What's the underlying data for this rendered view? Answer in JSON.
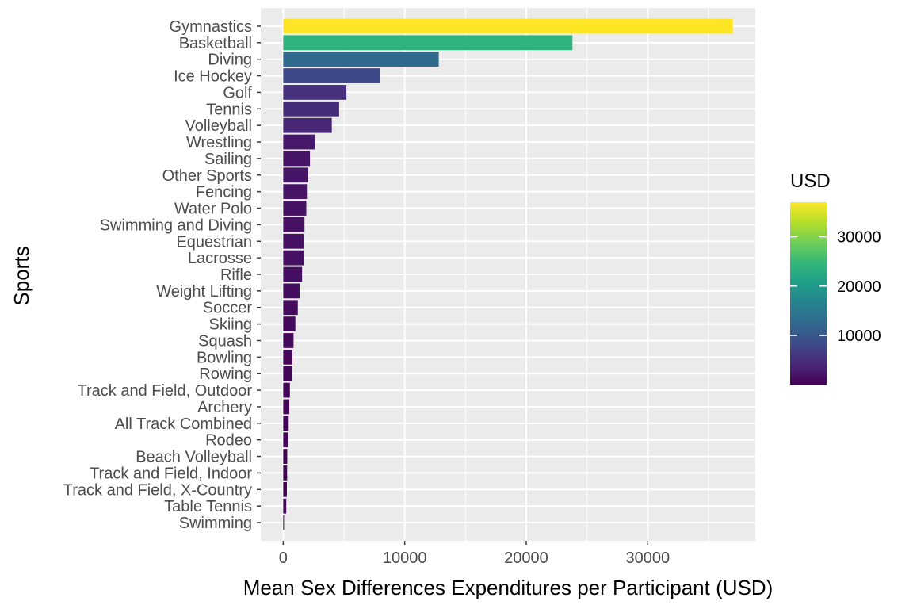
{
  "chart_data": {
    "type": "bar",
    "orientation": "horizontal",
    "xlabel": "Mean Sex Differences Expenditures per Participant (USD)",
    "ylabel": "Sports",
    "xlim": [
      -1850,
      38850
    ],
    "xticks": [
      0,
      10000,
      20000,
      30000
    ],
    "xtick_labels": [
      "0",
      "10000",
      "20000",
      "30000"
    ],
    "grid": true,
    "background": "#ebebeb",
    "legend": {
      "title": "USD",
      "position": "right",
      "type": "colorbar",
      "min": 50,
      "max": 37000,
      "ticks": [
        10000,
        20000,
        30000
      ],
      "tick_labels": [
        "10000",
        "20000",
        "30000"
      ],
      "colormap": "viridis",
      "colors": [
        "#440154",
        "#482878",
        "#3e4a89",
        "#31688e",
        "#26828e",
        "#1f9e89",
        "#35b779",
        "#6ece58",
        "#b5de2b",
        "#fde725"
      ]
    },
    "categories": [
      "Gymnastics",
      "Basketball",
      "Diving",
      "Ice Hockey",
      "Golf",
      "Tennis",
      "Volleyball",
      "Wrestling",
      "Sailing",
      "Other Sports",
      "Fencing",
      "Water Polo",
      "Swimming and Diving",
      "Equestrian",
      "Lacrosse",
      "Rifle",
      "Weight Lifting",
      "Soccer",
      "Skiing",
      "Squash",
      "Bowling",
      "Rowing",
      "Track and Field, Outdoor",
      "Archery",
      "All Track Combined",
      "Rodeo",
      "Beach Volleyball",
      "Track and Field, Indoor",
      "Track and Field, X-Country",
      "Table Tennis",
      "Swimming"
    ],
    "values": [
      37000,
      23800,
      12800,
      8000,
      5200,
      4600,
      4000,
      2600,
      2200,
      2050,
      1950,
      1900,
      1750,
      1700,
      1700,
      1550,
      1350,
      1200,
      1000,
      850,
      750,
      700,
      550,
      500,
      450,
      400,
      330,
      320,
      300,
      250,
      50
    ]
  }
}
